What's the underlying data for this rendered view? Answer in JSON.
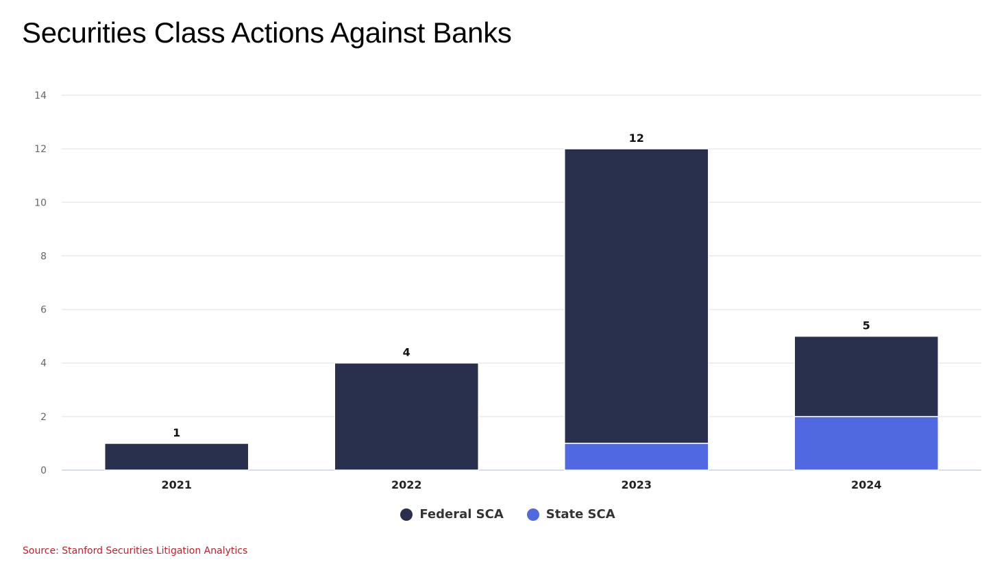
{
  "title": "Securities Class Actions Against Banks",
  "source": "Source: Stanford Securities Litigation Analytics",
  "colors": {
    "federal": "#29304d",
    "state": "#5169e0",
    "grid": "#e6e9ef",
    "source_text": "#c0202a"
  },
  "chart_data": {
    "type": "bar",
    "stacked": true,
    "title": "Securities Class Actions Against Banks",
    "categories": [
      "2021",
      "2022",
      "2023",
      "2024"
    ],
    "series": [
      {
        "name": "State SCA",
        "values": [
          0,
          0,
          1,
          2
        ],
        "color": "#5169e0"
      },
      {
        "name": "Federal SCA",
        "values": [
          1,
          4,
          11,
          3
        ],
        "color": "#29304d"
      }
    ],
    "totals": [
      "1",
      "4",
      "12",
      "5"
    ],
    "yticks": [
      "0",
      "2",
      "4",
      "6",
      "8",
      "10",
      "12",
      "14"
    ],
    "ylim": [
      0,
      14
    ],
    "grid": true,
    "legend_position": "bottom-center",
    "legend": [
      {
        "name": "Federal SCA",
        "color": "#29304d"
      },
      {
        "name": "State SCA",
        "color": "#5169e0"
      }
    ]
  }
}
